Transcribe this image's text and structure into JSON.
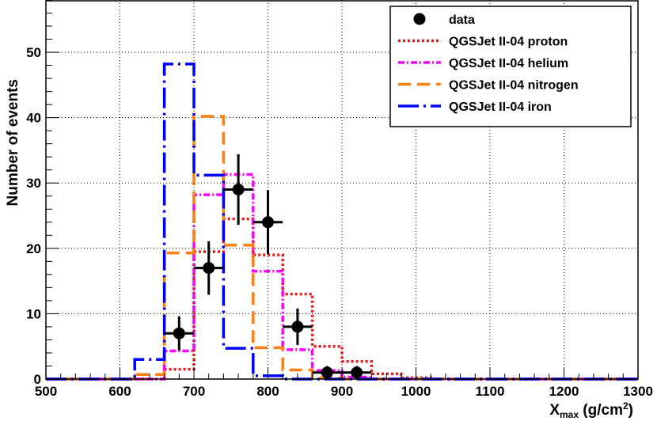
{
  "chart_data": {
    "type": "bar",
    "xlabel_base": "X",
    "xlabel_sub": "max",
    "xlabel_unit": " (g/cm",
    "xlabel_sup": "2",
    "xlabel_close": ")",
    "ylabel": "Number of events",
    "xlim": [
      500,
      1300
    ],
    "ylim": [
      0,
      58
    ],
    "grid": true,
    "legend_position": "top-right",
    "x_ticks": [
      "500",
      "600",
      "700",
      "800",
      "900",
      "1000",
      "1100",
      "1200",
      "1300"
    ],
    "y_ticks": [
      "0",
      "10",
      "20",
      "30",
      "40",
      "50"
    ],
    "bin_edges": [
      500,
      540,
      580,
      620,
      660,
      700,
      740,
      780,
      820,
      860,
      900,
      940,
      980,
      1020,
      1060,
      1100,
      1140,
      1180,
      1220,
      1260,
      1300
    ],
    "series": [
      {
        "name": "QGSJet II-04 proton",
        "color": "#e41a1c",
        "style": "dotted",
        "values": [
          0,
          0,
          0,
          0,
          1.5,
          19.5,
          24.5,
          19,
          13,
          5,
          2.7,
          0.8,
          0.2,
          0,
          0,
          0,
          0,
          0,
          0,
          0
        ]
      },
      {
        "name": "QGSJet II-04 helium",
        "color": "#ff00ff",
        "style": "dashdot",
        "values": [
          0,
          0,
          0,
          0,
          4.3,
          28.2,
          31.3,
          16.5,
          4.5,
          1.3,
          0.3,
          0,
          0,
          0,
          0,
          0,
          0,
          0,
          0,
          0
        ]
      },
      {
        "name": "QGSJet II-04 nitrogen",
        "color": "#ff7f0e",
        "style": "dashed",
        "values": [
          0,
          0,
          0,
          0.7,
          19.3,
          40.2,
          20.5,
          4.8,
          1.4,
          0.2,
          0,
          0,
          0,
          0,
          0,
          0,
          0,
          0,
          0,
          0
        ]
      },
      {
        "name": "QGSJet II-04 iron",
        "color": "#0000ff",
        "style": "longdashdot",
        "values": [
          0,
          0,
          0,
          3,
          48.2,
          31.2,
          4.7,
          0.5,
          0,
          0,
          0,
          0,
          0,
          0,
          0,
          0,
          0,
          0,
          0,
          0
        ]
      }
    ],
    "data": {
      "name": "data",
      "x": [
        680,
        720,
        760,
        800,
        840,
        880,
        920
      ],
      "y": [
        7,
        17,
        29,
        24,
        8,
        1,
        1
      ],
      "yerr": [
        2.6,
        4.1,
        5.4,
        4.9,
        2.8,
        1.0,
        1.0
      ],
      "xerr": 20
    }
  }
}
